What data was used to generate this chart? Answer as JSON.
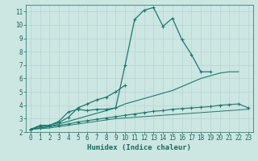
{
  "title": "",
  "xlabel": "Humidex (Indice chaleur)",
  "x_values": [
    0,
    1,
    2,
    3,
    4,
    5,
    6,
    7,
    8,
    9,
    10,
    11,
    12,
    13,
    14,
    15,
    16,
    17,
    18,
    19,
    20,
    21,
    22,
    23
  ],
  "series": [
    {
      "name": "line1_main",
      "y": [
        2.2,
        2.5,
        2.5,
        2.8,
        3.5,
        3.7,
        3.6,
        3.7,
        3.7,
        3.8,
        7.0,
        10.4,
        11.1,
        11.3,
        9.9,
        10.5,
        8.9,
        7.8,
        6.5,
        6.5,
        null,
        null,
        null,
        null
      ],
      "color": "#1a7a6e",
      "marker": "+",
      "markersize": 3.5,
      "linewidth": 0.9
    },
    {
      "name": "line2_medium",
      "y": [
        2.2,
        2.4,
        2.5,
        2.7,
        3.1,
        3.8,
        4.1,
        4.4,
        4.6,
        5.0,
        5.5,
        null,
        null,
        null,
        null,
        null,
        null,
        null,
        null,
        null,
        null,
        null,
        null,
        null
      ],
      "color": "#1a7a6e",
      "marker": "+",
      "markersize": 3.5,
      "linewidth": 0.9
    },
    {
      "name": "line3_smooth",
      "y": [
        2.2,
        2.3,
        2.4,
        2.6,
        2.8,
        3.0,
        3.2,
        3.4,
        3.6,
        3.8,
        4.1,
        4.3,
        4.5,
        4.7,
        4.9,
        5.1,
        5.4,
        5.7,
        6.0,
        6.2,
        6.4,
        6.5,
        6.5,
        null
      ],
      "color": "#1a7a6e",
      "marker": null,
      "markersize": 0,
      "linewidth": 0.8
    },
    {
      "name": "line4_flat",
      "y": [
        2.2,
        2.3,
        2.4,
        2.5,
        2.6,
        2.75,
        2.85,
        2.95,
        3.05,
        3.15,
        3.25,
        3.35,
        3.45,
        3.55,
        3.6,
        3.7,
        3.75,
        3.8,
        3.85,
        3.9,
        4.0,
        4.05,
        4.1,
        3.8
      ],
      "color": "#1a7a6e",
      "marker": "+",
      "markersize": 3.0,
      "linewidth": 0.8
    },
    {
      "name": "line5_flattest",
      "y": [
        2.2,
        2.25,
        2.3,
        2.4,
        2.5,
        2.6,
        2.7,
        2.8,
        2.9,
        3.0,
        3.05,
        3.1,
        3.15,
        3.2,
        3.25,
        3.3,
        3.35,
        3.4,
        3.45,
        3.5,
        3.55,
        3.6,
        3.65,
        3.7
      ],
      "color": "#1a7a6e",
      "marker": null,
      "markersize": 0,
      "linewidth": 0.7
    }
  ],
  "ylim": [
    2.0,
    11.5
  ],
  "xlim": [
    -0.5,
    23.5
  ],
  "yticks": [
    2,
    3,
    4,
    5,
    6,
    7,
    8,
    9,
    10,
    11
  ],
  "xticks": [
    0,
    1,
    2,
    3,
    4,
    5,
    6,
    7,
    8,
    9,
    10,
    11,
    12,
    13,
    14,
    15,
    16,
    17,
    18,
    19,
    20,
    21,
    22,
    23
  ],
  "grid_color": "#b8d4d0",
  "bg_color": "#cce6e2",
  "line_color": "#1a6b60",
  "tick_fontsize": 5.5,
  "label_fontsize": 6.5
}
